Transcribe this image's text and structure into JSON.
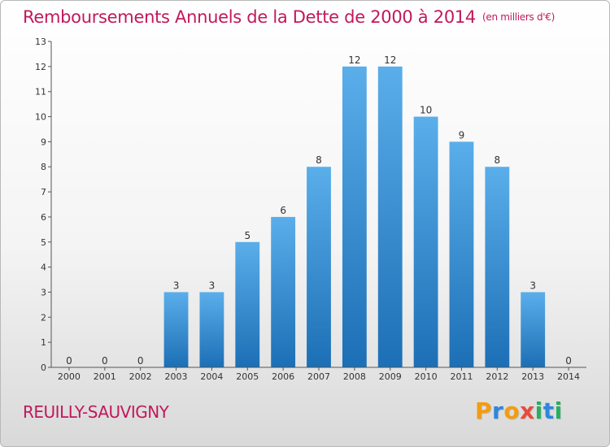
{
  "header": {
    "title": "Remboursements Annuels de la Dette de 2000 à 2014",
    "unit": "(en milliers d'€)"
  },
  "footer": {
    "commune": "REUILLY-SAUVIGNY",
    "logo": [
      "P",
      "r",
      "o",
      "x",
      "i",
      "t",
      "i"
    ]
  },
  "colors": {
    "title": "#c2185b",
    "bar_top": "#5aaeea",
    "bar_bottom": "#1c6fb5",
    "logo": [
      "#f39c12",
      "#2e86de",
      "#f39c12",
      "#e74c3c",
      "#27ae60",
      "#2e86de",
      "#27ae60"
    ]
  },
  "chart_data": {
    "type": "bar",
    "categories": [
      "2000",
      "2001",
      "2002",
      "2003",
      "2004",
      "2005",
      "2006",
      "2007",
      "2008",
      "2009",
      "2010",
      "2011",
      "2012",
      "2013",
      "2014"
    ],
    "values": [
      0,
      0,
      0,
      3,
      3,
      5,
      6,
      8,
      12,
      12,
      10,
      9,
      8,
      3,
      0
    ],
    "title": "Remboursements Annuels de la Dette de 2000 à 2014",
    "ylim": [
      0,
      13
    ],
    "yticks": [
      0,
      1,
      2,
      3,
      4,
      5,
      6,
      7,
      8,
      9,
      10,
      11,
      12,
      13
    ],
    "grid": false,
    "data_labels": true
  }
}
